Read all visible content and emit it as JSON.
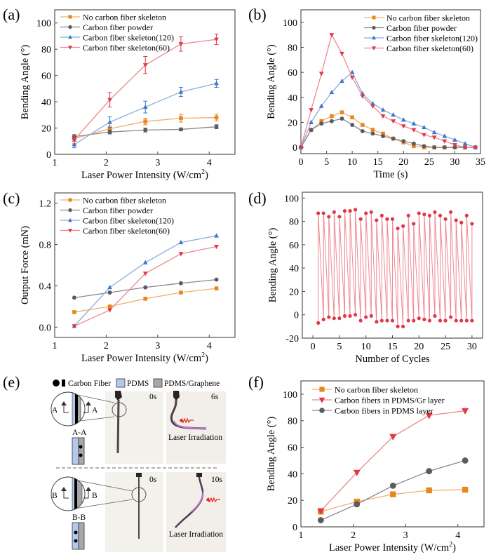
{
  "figure": {
    "colors": {
      "orange": "#E8871E",
      "orange_line": "#F0B070",
      "gray": "#5A5A60",
      "gray_line": "#8A8A8E",
      "blue": "#3C78C8",
      "blue_line": "#88AEE0",
      "red": "#E03848",
      "red_line": "#EE8890",
      "pdms": "#B4C8EC",
      "graphene": "#A8A8A8",
      "photo_bg": "#F3F1EC"
    }
  },
  "chart_data": [
    {
      "panel": "(a)",
      "type": "line",
      "xlabel": "Laser Power Intensity (W/cm",
      "xlabel_sup": "2",
      "xlabel_end": ")",
      "ylabel": "Bending Angle (°)",
      "xlim": [
        1,
        4.5
      ],
      "ylim": [
        0,
        110
      ],
      "xticks": [
        1,
        2,
        3,
        4
      ],
      "yticks": [
        0,
        20,
        40,
        60,
        80,
        100
      ],
      "legend_position": "top-left",
      "x": [
        1.38,
        2.07,
        2.76,
        3.45,
        4.14
      ],
      "series": [
        {
          "name": "No carbon fiber skeleton",
          "marker": "square",
          "color": "orange",
          "values": [
            12,
            19.5,
            25,
            27.5,
            28
          ],
          "errors": [
            2,
            2,
            2.5,
            3,
            2.5
          ]
        },
        {
          "name": "Carbon fiber powder",
          "marker": "circle",
          "color": "gray",
          "values": [
            13.5,
            17,
            18.5,
            19,
            21
          ],
          "errors": [
            1.5,
            1.5,
            1.5,
            1,
            1.5
          ]
        },
        {
          "name": "Carbon fiber skeleton(120)",
          "marker": "triangle-up",
          "color": "blue",
          "values": [
            7.5,
            24.5,
            36,
            47.5,
            54
          ],
          "errors": [
            2.5,
            4,
            4.5,
            3.5,
            3
          ]
        },
        {
          "name": "Carbon fiber skeleton(60)",
          "marker": "triangle-down",
          "color": "red",
          "values": [
            11,
            41.5,
            68,
            84,
            87.5
          ],
          "errors": [
            3,
            5.5,
            6.5,
            5.5,
            4
          ]
        }
      ]
    },
    {
      "panel": "(b)",
      "type": "line",
      "xlabel": "Time (s)",
      "ylabel": "Bending Angle (°)",
      "xlim": [
        0,
        35
      ],
      "ylim": [
        -5,
        110
      ],
      "xticks": [
        0,
        5,
        10,
        15,
        20,
        25,
        30,
        35
      ],
      "yticks": [
        0,
        20,
        40,
        60,
        80,
        100
      ],
      "legend_position": "top-right",
      "x": [
        0,
        2,
        4,
        6,
        8,
        10,
        12,
        14,
        16,
        18,
        20,
        22,
        24,
        26,
        28,
        30,
        32,
        34
      ],
      "series": [
        {
          "name": "No carbon fiber skeleton",
          "marker": "square",
          "color": "orange",
          "values": [
            0,
            14,
            21,
            25,
            28,
            24,
            18,
            14,
            11,
            7,
            4,
            1,
            0,
            0,
            0,
            0,
            0,
            0
          ]
        },
        {
          "name": "Carbon fiber powder",
          "marker": "circle",
          "color": "gray",
          "values": [
            0,
            14,
            19,
            21,
            23,
            18,
            13,
            11,
            9,
            7,
            5,
            3,
            1,
            0,
            0,
            0,
            0,
            0
          ]
        },
        {
          "name": "Carbon fiber skeleton(120)",
          "marker": "triangle-up",
          "color": "blue",
          "values": [
            0,
            20,
            33,
            44,
            53,
            60,
            43,
            35,
            30,
            26,
            22,
            19,
            16,
            12,
            9,
            6,
            3,
            0
          ]
        },
        {
          "name": "Carbon fiber skeleton(60)",
          "marker": "triangle-down",
          "color": "red",
          "values": [
            0,
            30,
            59,
            90,
            75,
            56,
            41,
            33,
            25,
            21,
            17,
            14,
            10,
            8,
            5,
            2,
            0,
            0
          ]
        }
      ]
    },
    {
      "panel": "(c)",
      "type": "line",
      "xlabel": "Laser Power Intensity (W/cm",
      "xlabel_sup": "2",
      "xlabel_end": ")",
      "ylabel": "Output Force (mN)",
      "xlim": [
        1,
        4.5
      ],
      "ylim": [
        -0.1,
        1.3
      ],
      "xticks": [
        1,
        2,
        3,
        4
      ],
      "yticks": [
        0.0,
        0.4,
        0.8,
        1.2
      ],
      "ytick_labels": [
        "0.0",
        "0.4",
        "0.8",
        "1.2"
      ],
      "legend_position": "top-left",
      "x": [
        1.38,
        2.07,
        2.76,
        3.45,
        4.14
      ],
      "series": [
        {
          "name": "No carbon fiber skeleton",
          "marker": "square",
          "color": "orange",
          "values": [
            0.145,
            0.2,
            0.275,
            0.335,
            0.375
          ]
        },
        {
          "name": "Carbon fiber powder",
          "marker": "circle",
          "color": "gray",
          "values": [
            0.285,
            0.335,
            0.385,
            0.425,
            0.46
          ]
        },
        {
          "name": "Carbon fiber skeleton(120)",
          "marker": "triangle-up",
          "color": "blue",
          "values": [
            0.01,
            0.385,
            0.625,
            0.82,
            0.885
          ]
        },
        {
          "name": "Carbon fiber skeleton(60)",
          "marker": "triangle-down",
          "color": "red",
          "values": [
            0.01,
            0.165,
            0.52,
            0.71,
            0.78
          ]
        }
      ]
    },
    {
      "panel": "(d)",
      "type": "line",
      "xlabel": "Number of Cycles",
      "ylabel": "Bending Angle (°)",
      "xlim": [
        -2,
        32
      ],
      "ylim": [
        -20,
        105
      ],
      "xticks": [
        0,
        5,
        10,
        15,
        20,
        25,
        30
      ],
      "yticks": [
        -20,
        0,
        20,
        40,
        60,
        80,
        100
      ],
      "cycles": [
        1,
        2,
        3,
        4,
        5,
        6,
        7,
        8,
        9,
        10,
        11,
        12,
        13,
        14,
        15,
        16,
        17,
        18,
        19,
        20,
        21,
        22,
        23,
        24,
        25,
        26,
        27,
        28,
        29,
        30
      ],
      "series": [
        {
          "name": "peak",
          "color": "red",
          "values": [
            87,
            87,
            84,
            88,
            84,
            89,
            89,
            90,
            82,
            87,
            88,
            81,
            85,
            82,
            82,
            74,
            76,
            85,
            78,
            87,
            86,
            85,
            88,
            85,
            82,
            88,
            81,
            79,
            85,
            78
          ]
        },
        {
          "name": "trough",
          "color": "red",
          "values": [
            -7,
            -4,
            -2,
            -3,
            -3,
            -1,
            -1,
            0,
            -5,
            -2,
            -1,
            -6,
            -5,
            -5,
            -5,
            -10,
            -10,
            -5,
            -5,
            -3,
            -4,
            -5,
            -1,
            -5,
            -5,
            -2,
            -5,
            -5,
            -5,
            -5
          ]
        }
      ]
    },
    {
      "panel": "(f)",
      "type": "line",
      "xlabel": "Laser Power Intensity (W/cm",
      "xlabel_sup": "2",
      "xlabel_end": ")",
      "ylabel": "Bending Angle (°)",
      "xlim": [
        1,
        4.5
      ],
      "ylim": [
        0,
        110
      ],
      "xticks": [
        1,
        2,
        3,
        4
      ],
      "yticks": [
        0,
        20,
        40,
        60,
        80,
        100
      ],
      "legend_position": "top-left",
      "x": [
        1.38,
        2.07,
        2.76,
        3.45,
        4.14
      ],
      "series": [
        {
          "name": "No carbon fiber skeleton",
          "marker": "square",
          "color": "orange",
          "values": [
            11.5,
            19,
            24.5,
            27.5,
            28
          ]
        },
        {
          "name": "Carbon fibers in PDMS/Gr layer",
          "marker": "triangle-down",
          "color": "red",
          "values": [
            12,
            41,
            68,
            84,
            87.5
          ]
        },
        {
          "name": "Carbon fibers in PDMS layer",
          "marker": "circle",
          "color": "gray",
          "values": [
            5,
            17,
            31,
            42,
            50
          ]
        }
      ]
    }
  ],
  "panel_e": {
    "label": "(e)",
    "legend": {
      "carbon_fiber": "Carbon Fiber",
      "pdms": "PDMS",
      "pdms_graphene": "PDMS/Graphene"
    },
    "top": {
      "section_letter": "A",
      "section_label": "A-A",
      "t0": "0s",
      "t1": "6s",
      "caption": "Laser Irradiation"
    },
    "bottom": {
      "section_letter": "B",
      "section_label": "B-B",
      "t0": "0s",
      "t1": "10s",
      "caption": "Laser Irradiation"
    }
  }
}
